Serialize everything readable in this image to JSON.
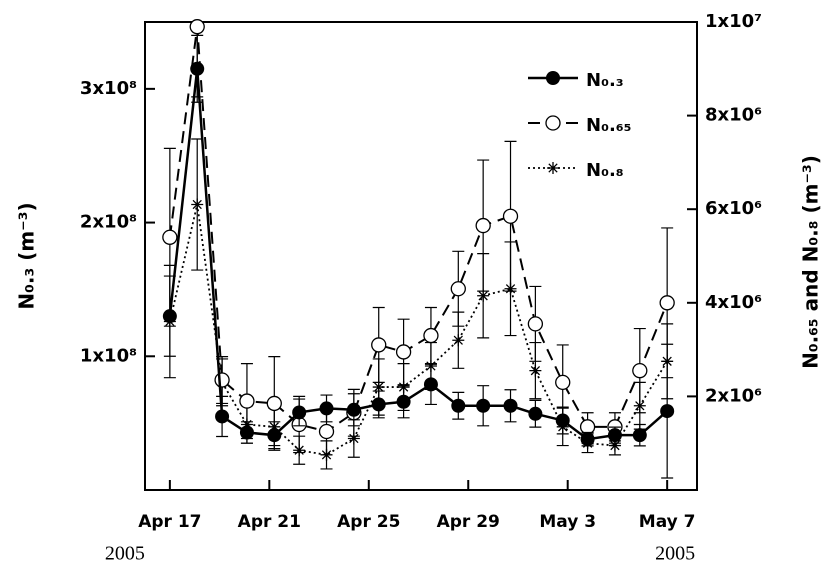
{
  "chart_data": {
    "type": "line",
    "x": [
      0,
      1.1,
      2.1,
      3.1,
      4.2,
      5.2,
      6.3,
      7.4,
      8.4,
      9.4,
      10.5,
      11.6,
      12.6,
      13.7,
      14.7,
      15.8,
      16.8,
      17.9,
      18.9,
      20
    ],
    "xlim": [
      -1,
      21.2
    ],
    "xticks": [
      {
        "value": 0,
        "label": "Apr 17"
      },
      {
        "value": 4,
        "label": "Apr 21"
      },
      {
        "value": 8,
        "label": "Apr 25"
      },
      {
        "value": 12,
        "label": "Apr 29"
      },
      {
        "value": 16,
        "label": "May 3"
      },
      {
        "value": 20,
        "label": "May 7"
      }
    ],
    "ylabel": "N₀.₃ (m⁻³)",
    "y2label": "N₀.₆₅ and N₀.₈ (m⁻³)",
    "ylim": [
      0,
      350000000
    ],
    "yticks": [
      {
        "value": 100000000,
        "label": "1x10⁸"
      },
      {
        "value": 200000000,
        "label": "2x10⁸"
      },
      {
        "value": 300000000,
        "label": "3x10⁸"
      }
    ],
    "y2lim": [
      0,
      10000000
    ],
    "y2ticks": [
      {
        "value": 2000000,
        "label": "2x10⁶"
      },
      {
        "value": 4000000,
        "label": "4x10⁶"
      },
      {
        "value": 6000000,
        "label": "6x10⁶"
      },
      {
        "value": 8000000,
        "label": "8x10⁶"
      },
      {
        "value": 10000000,
        "label": "1x10⁷"
      }
    ],
    "annotations": [
      "2005",
      "2005"
    ],
    "series": [
      {
        "name": "N₀.₃",
        "color": "#000000",
        "axis": "y",
        "line": "solid",
        "marker": "filled-circle",
        "values": [
          130000000,
          315000000,
          55000000,
          43000000,
          41000000,
          58000000,
          61000000,
          60000000,
          64000000,
          66000000,
          79000000,
          63000000,
          63000000,
          63000000,
          57000000,
          52000000,
          38000000,
          41000000,
          41000000,
          59000000
        ],
        "errors": [
          30000000,
          25000000,
          15000000,
          8000000,
          10000000,
          10000000,
          10000000,
          12000000,
          10000000,
          12000000,
          15000000,
          10000000,
          15000000,
          12000000,
          10000000,
          10000000,
          5000000,
          6000000,
          8000000,
          50000000
        ]
      },
      {
        "name": "N₀.₆₅",
        "color": "#000000",
        "axis": "y2",
        "line": "dashed",
        "marker": "open-circle",
        "values": [
          5400000,
          9900000,
          2350000,
          1900000,
          1850000,
          1400000,
          1250000,
          1650000,
          3100000,
          2950000,
          3300000,
          4300000,
          5650000,
          5850000,
          3550000,
          2300000,
          1350000,
          1350000,
          2550000,
          4000000
        ],
        "errors": [
          1900000,
          1500000,
          500000,
          800000,
          1000000,
          600000,
          500000,
          500000,
          800000,
          700000,
          600000,
          800000,
          1400000,
          1600000,
          800000,
          800000,
          300000,
          300000,
          900000,
          1600000
        ]
      },
      {
        "name": "N₀.₈",
        "color": "#000000",
        "axis": "y2",
        "line": "dotted",
        "marker": "star",
        "values": [
          3600000,
          6100000,
          2300000,
          1400000,
          1350000,
          850000,
          750000,
          1100000,
          2200000,
          2200000,
          2650000,
          3200000,
          4150000,
          4300000,
          2550000,
          1350000,
          1000000,
          950000,
          1800000,
          2750000
        ],
        "errors": [
          1200000,
          1400000,
          500000,
          400000,
          400000,
          300000,
          300000,
          400000,
          600000,
          500000,
          500000,
          600000,
          900000,
          1000000,
          600000,
          400000,
          200000,
          200000,
          500000,
          800000
        ]
      }
    ]
  }
}
